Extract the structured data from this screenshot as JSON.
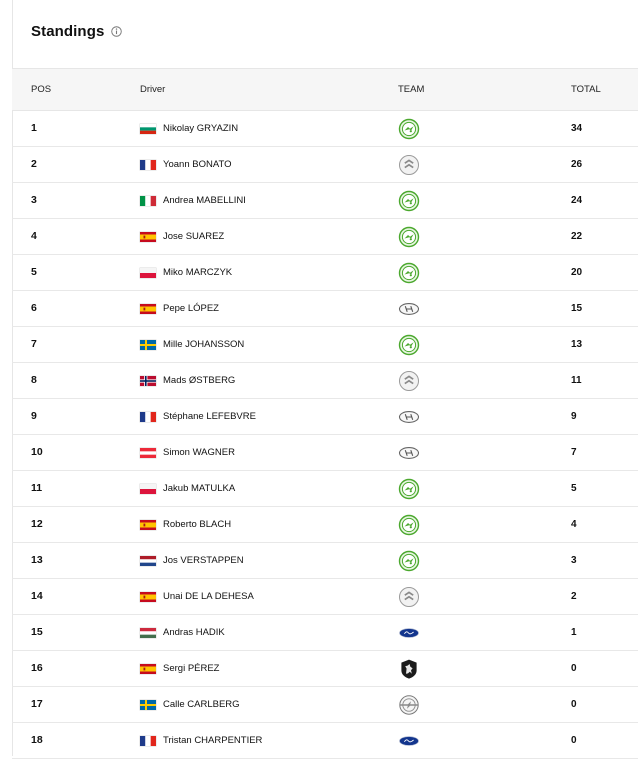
{
  "header": {
    "title": "Standings",
    "info_icon": "info-icon"
  },
  "columns": {
    "pos": "POS",
    "driver": "Driver",
    "team": "TEAM",
    "total": "TOTAL"
  },
  "colors": {
    "header_bg": "#f6f6f6",
    "border": "#e6e6e6",
    "skoda_green": "#4ba82e"
  },
  "rows": [
    {
      "pos": "1",
      "driver": "Nikolay GRYAZIN",
      "flag": "bulgaria-flag",
      "team": "skoda-logo-icon",
      "total": "34"
    },
    {
      "pos": "2",
      "driver": "Yoann BONATO",
      "flag": "france-flag",
      "team": "citroen-logo-icon",
      "total": "26"
    },
    {
      "pos": "3",
      "driver": "Andrea MABELLINI",
      "flag": "italy-flag",
      "team": "skoda-logo-icon",
      "total": "24"
    },
    {
      "pos": "4",
      "driver": "Jose SUAREZ",
      "flag": "spain-flag",
      "team": "skoda-logo-icon",
      "total": "22"
    },
    {
      "pos": "5",
      "driver": "Miko MARCZYK",
      "flag": "poland-flag",
      "team": "skoda-logo-icon",
      "total": "20"
    },
    {
      "pos": "6",
      "driver": "Pepe LÓPEZ",
      "flag": "spain-flag",
      "team": "hyundai-logo-icon",
      "total": "15"
    },
    {
      "pos": "7",
      "driver": "Mille JOHANSSON",
      "flag": "sweden-flag",
      "team": "skoda-logo-icon",
      "total": "13"
    },
    {
      "pos": "8",
      "driver": "Mads ØSTBERG",
      "flag": "norway-flag",
      "team": "citroen-logo-icon",
      "total": "11"
    },
    {
      "pos": "9",
      "driver": "Stéphane LEFEBVRE",
      "flag": "france-flag",
      "team": "hyundai-logo-icon",
      "total": "9"
    },
    {
      "pos": "10",
      "driver": "Simon WAGNER",
      "flag": "austria-flag",
      "team": "hyundai-logo-icon",
      "total": "7"
    },
    {
      "pos": "11",
      "driver": "Jakub MATULKA",
      "flag": "poland-flag",
      "team": "skoda-logo-icon",
      "total": "5"
    },
    {
      "pos": "12",
      "driver": "Roberto BLACH",
      "flag": "spain-flag",
      "team": "skoda-logo-icon",
      "total": "4"
    },
    {
      "pos": "13",
      "driver": "Jos VERSTAPPEN",
      "flag": "netherlands-flag",
      "team": "skoda-logo-icon",
      "total": "3"
    },
    {
      "pos": "14",
      "driver": "Unai DE LA DEHESA",
      "flag": "spain-flag",
      "team": "citroen-logo-icon",
      "total": "2"
    },
    {
      "pos": "15",
      "driver": "Andras HADIK",
      "flag": "hungary-flag",
      "team": "ford-logo-icon",
      "total": "1"
    },
    {
      "pos": "16",
      "driver": "Sergi PÉREZ",
      "flag": "spain-flag",
      "team": "peugeot-logo-icon",
      "total": "0"
    },
    {
      "pos": "17",
      "driver": "Calle CARLBERG",
      "flag": "sweden-flag",
      "team": "opel-logo-icon",
      "total": "0"
    },
    {
      "pos": "18",
      "driver": "Tristan CHARPENTIER",
      "flag": "france-flag",
      "team": "ford-logo-icon",
      "total": "0"
    }
  ]
}
